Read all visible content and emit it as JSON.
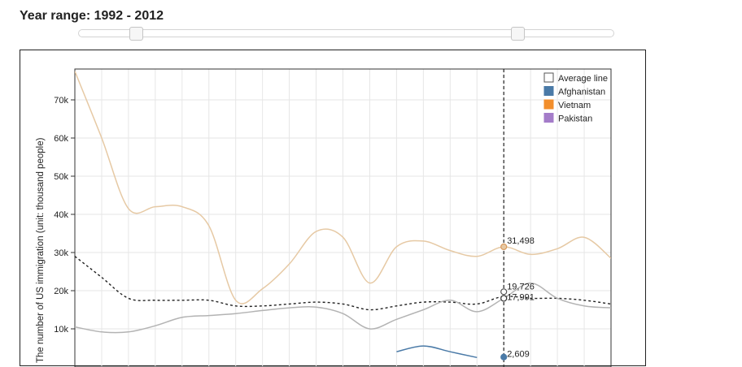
{
  "controls": {
    "range_label": "Year range:",
    "range_text": "1992 - 2012",
    "slider_min_year": 1992,
    "slider_max_year": 2012
  },
  "chart_data": {
    "type": "line",
    "ylabel": "The number of US immigration (unit: thousand people)",
    "xlim": [
      1992,
      2012
    ],
    "ylim": [
      6000,
      78000
    ],
    "yticks": [
      "10k",
      "20k",
      "30k",
      "40k",
      "50k",
      "60k",
      "70k"
    ],
    "ytick_values": [
      10000,
      20000,
      30000,
      40000,
      50000,
      60000,
      70000
    ],
    "grid": true,
    "legend_position": "top-right",
    "legend": [
      "Average line",
      "Afghanistan",
      "Vietnam",
      "Pakistan"
    ],
    "marker_year": 2008,
    "colors": {
      "vietnam": "#e6c9a4",
      "gray": "#b3b3b3",
      "afghanistan": "#4a7aa7",
      "vietnam_legend": "#f28e2b",
      "pakistan": "#a47cc9",
      "average": "#222222"
    },
    "series": [
      {
        "key": "vietnam",
        "x": [
          1992,
          1993,
          1994,
          1995,
          1996,
          1997,
          1998,
          1999,
          2000,
          2001,
          2002,
          2003,
          2004,
          2005,
          2006,
          2007,
          2008,
          2009,
          2010,
          2011,
          2012
        ],
        "values": [
          77500,
          60000,
          41500,
          42000,
          42000,
          37000,
          17500,
          20500,
          27000,
          35500,
          34000,
          22000,
          31500,
          33000,
          30500,
          29000,
          31498,
          29500,
          31000,
          34000,
          28500
        ]
      },
      {
        "key": "average",
        "x": [
          1992,
          1993,
          1994,
          1995,
          1996,
          1997,
          1998,
          1999,
          2000,
          2001,
          2002,
          2003,
          2004,
          2005,
          2006,
          2007,
          2008,
          2009,
          2010,
          2011,
          2012
        ],
        "values": [
          29000,
          23500,
          18000,
          17500,
          17500,
          17500,
          16000,
          16000,
          16500,
          17000,
          16500,
          15000,
          16000,
          17000,
          17000,
          16500,
          18500,
          18000,
          18000,
          17500,
          16500
        ]
      },
      {
        "key": "gray",
        "x": [
          1992,
          1993,
          1994,
          1995,
          1996,
          1997,
          1998,
          1999,
          2000,
          2001,
          2002,
          2003,
          2004,
          2005,
          2006,
          2007,
          2008,
          2009,
          2010,
          2011,
          2012
        ],
        "values": [
          10500,
          9200,
          9200,
          10800,
          13000,
          13500,
          14000,
          14800,
          15500,
          15700,
          14000,
          10000,
          12500,
          15000,
          17500,
          14500,
          17991,
          22000,
          18000,
          16000,
          15500
        ]
      },
      {
        "key": "afghanistan",
        "x": [
          2004,
          2005,
          2006,
          2007
        ],
        "values": [
          4000,
          5500,
          4000,
          2500
        ]
      }
    ],
    "annotations": [
      {
        "label": "31,498",
        "x": 2008,
        "y": 31498
      },
      {
        "label": "19,726",
        "x": 2008,
        "y": 19726
      },
      {
        "label": "17,991",
        "x": 2008,
        "y": 17991
      },
      {
        "label": "2,609",
        "x": 2008,
        "y": 2609
      }
    ]
  }
}
